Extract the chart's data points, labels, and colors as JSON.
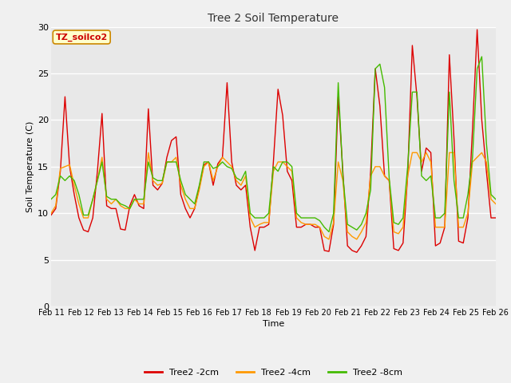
{
  "title": "Tree 2 Soil Temperature",
  "xlabel": "Time",
  "ylabel": "Soil Temperature (C)",
  "ylim": [
    0,
    30
  ],
  "yticks": [
    0,
    5,
    10,
    15,
    20,
    25,
    30
  ],
  "xlabels": [
    "Feb 11",
    "Feb 12",
    "Feb 13",
    "Feb 14",
    "Feb 15",
    "Feb 16",
    "Feb 17",
    "Feb 18",
    "Feb 19",
    "Feb 20",
    "Feb 21",
    "Feb 22",
    "Feb 23",
    "Feb 24",
    "Feb 25",
    "Feb 26"
  ],
  "annotation_text": "TZ_soilco2",
  "annotation_bg": "#ffffcc",
  "annotation_border": "#cc8800",
  "color_2cm": "#dd0000",
  "color_4cm": "#ff9900",
  "color_8cm": "#44bb00",
  "legend_labels": [
    "Tree2 -2cm",
    "Tree2 -4cm",
    "Tree2 -8cm"
  ],
  "fig_bg": "#f0f0f0",
  "plot_bg": "#e8e8e8",
  "grid_color": "#ffffff",
  "t2cm": [
    9.8,
    10.5,
    14.5,
    22.5,
    15.0,
    12.0,
    9.5,
    8.2,
    8.0,
    9.5,
    14.5,
    20.7,
    10.8,
    10.5,
    10.5,
    8.3,
    8.2,
    10.8,
    12.0,
    10.8,
    10.5,
    21.2,
    13.0,
    12.5,
    13.2,
    16.0,
    17.8,
    18.2,
    12.0,
    10.5,
    9.5,
    10.5,
    12.8,
    15.2,
    15.5,
    13.0,
    15.3,
    16.0,
    24.0,
    15.5,
    13.0,
    12.5,
    13.0,
    8.5,
    6.0,
    8.5,
    8.5,
    8.8,
    15.5,
    23.3,
    20.5,
    14.5,
    13.5,
    8.5,
    8.5,
    8.8,
    8.8,
    8.5,
    8.5,
    6.0,
    5.9,
    8.8,
    22.5,
    14.5,
    6.5,
    6.0,
    5.8,
    6.5,
    7.5,
    14.5,
    25.5,
    21.5,
    14.0,
    13.5,
    6.2,
    6.0,
    6.8,
    14.0,
    28.0,
    22.5,
    14.5,
    17.0,
    16.5,
    6.5,
    6.8,
    8.5,
    27.0,
    18.0,
    7.0,
    6.8,
    9.5,
    19.0,
    29.7,
    20.0,
    14.5,
    9.5,
    9.5
  ],
  "t4cm": [
    10.0,
    10.8,
    14.8,
    15.0,
    15.2,
    13.0,
    11.0,
    9.5,
    9.5,
    11.5,
    13.5,
    16.0,
    11.5,
    11.0,
    11.5,
    10.8,
    10.5,
    10.5,
    11.5,
    11.0,
    11.0,
    16.5,
    13.5,
    13.0,
    13.2,
    15.5,
    15.5,
    16.0,
    13.0,
    11.5,
    10.5,
    10.5,
    12.5,
    15.0,
    15.5,
    13.5,
    15.0,
    16.0,
    15.5,
    15.0,
    13.5,
    13.0,
    14.0,
    9.5,
    8.5,
    8.8,
    9.0,
    9.0,
    14.5,
    15.5,
    15.5,
    15.0,
    14.5,
    9.5,
    9.0,
    8.8,
    8.8,
    8.8,
    8.5,
    7.5,
    7.2,
    9.0,
    15.5,
    13.5,
    8.0,
    7.5,
    7.2,
    8.0,
    9.0,
    14.0,
    15.0,
    15.0,
    14.0,
    13.5,
    8.0,
    7.8,
    8.5,
    14.0,
    16.5,
    16.5,
    15.5,
    16.5,
    15.5,
    8.5,
    8.5,
    8.5,
    16.5,
    16.5,
    8.5,
    8.5,
    10.0,
    15.5,
    16.0,
    16.5,
    15.5,
    11.5,
    11.0
  ],
  "t8cm": [
    11.5,
    12.0,
    14.0,
    13.5,
    14.0,
    13.5,
    12.0,
    9.8,
    9.8,
    11.5,
    13.5,
    15.5,
    11.8,
    11.5,
    11.5,
    11.0,
    10.8,
    10.5,
    11.5,
    11.5,
    11.5,
    15.5,
    13.8,
    13.5,
    13.5,
    15.5,
    15.5,
    15.5,
    13.5,
    12.0,
    11.5,
    11.0,
    13.0,
    15.5,
    15.5,
    14.8,
    15.0,
    15.5,
    15.0,
    14.8,
    13.8,
    13.5,
    14.5,
    10.0,
    9.5,
    9.5,
    9.5,
    10.0,
    15.0,
    14.5,
    15.5,
    15.5,
    15.0,
    10.0,
    9.5,
    9.5,
    9.5,
    9.5,
    9.2,
    8.5,
    8.0,
    10.0,
    24.0,
    14.0,
    8.8,
    8.5,
    8.2,
    8.8,
    10.0,
    12.5,
    25.5,
    26.0,
    23.5,
    13.8,
    9.0,
    8.8,
    9.5,
    15.0,
    23.0,
    23.0,
    14.0,
    13.5,
    14.0,
    9.5,
    9.5,
    10.0,
    23.0,
    13.5,
    9.5,
    9.5,
    12.0,
    16.0,
    25.5,
    26.8,
    17.5,
    12.0,
    11.5
  ]
}
